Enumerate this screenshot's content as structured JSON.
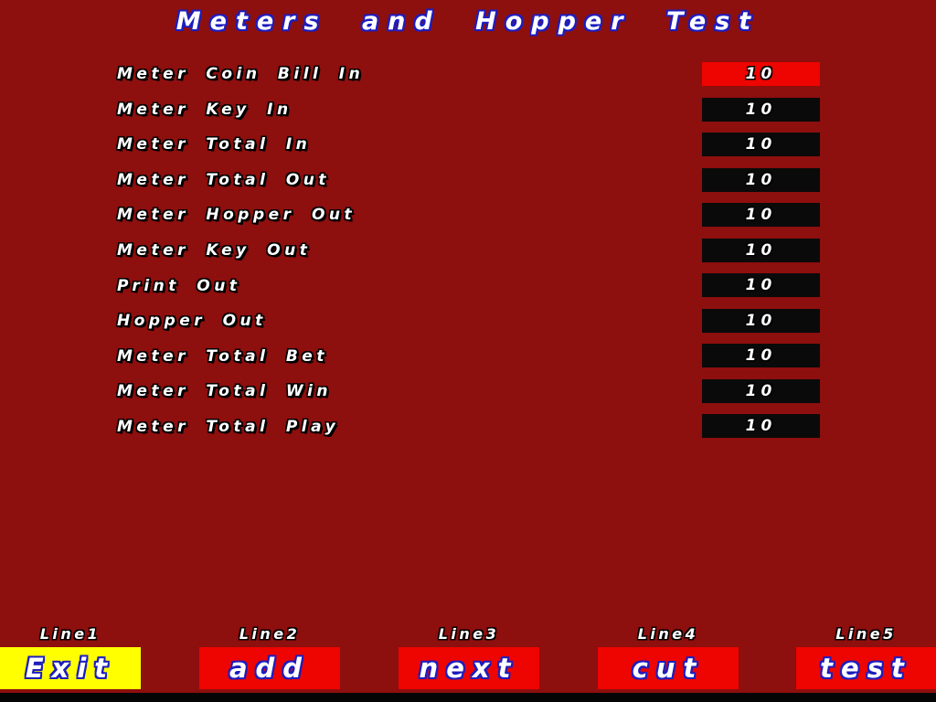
{
  "title": "Meters and Hopper Test",
  "colors": {
    "background": "#8d0f0e",
    "highlight_red": "#ee0400",
    "button_red": "#ee0400",
    "button_yellow": "#ffff00",
    "box_black": "#0a0a0a",
    "text_outline_blue": "#1d1dbe"
  },
  "meters": {
    "rows": [
      {
        "label": "Meter Coin Bill In",
        "value": "10",
        "highlighted": true
      },
      {
        "label": "Meter Key In",
        "value": "10",
        "highlighted": false
      },
      {
        "label": "Meter Total In",
        "value": "10",
        "highlighted": false
      },
      {
        "label": "Meter Total Out",
        "value": "10",
        "highlighted": false
      },
      {
        "label": "Meter Hopper Out",
        "value": "10",
        "highlighted": false
      },
      {
        "label": "Meter Key Out",
        "value": "10",
        "highlighted": false
      },
      {
        "label": "Print Out",
        "value": "10",
        "highlighted": false
      },
      {
        "label": "Hopper Out",
        "value": "10",
        "highlighted": false
      },
      {
        "label": "Meter Total Bet",
        "value": "10",
        "highlighted": false
      },
      {
        "label": "Meter Total Win",
        "value": "10",
        "highlighted": false
      },
      {
        "label": "Meter Total Play",
        "value": "10",
        "highlighted": false
      }
    ]
  },
  "footer": {
    "buttons": [
      {
        "line": "Line1",
        "label": "Exit",
        "bg": "#ffff00"
      },
      {
        "line": "Line2",
        "label": "add",
        "bg": "#ee0400"
      },
      {
        "line": "Line3",
        "label": "next",
        "bg": "#ee0400"
      },
      {
        "line": "Line4",
        "label": "cut",
        "bg": "#ee0400"
      },
      {
        "line": "Line5",
        "label": "test",
        "bg": "#ee0400"
      }
    ]
  }
}
